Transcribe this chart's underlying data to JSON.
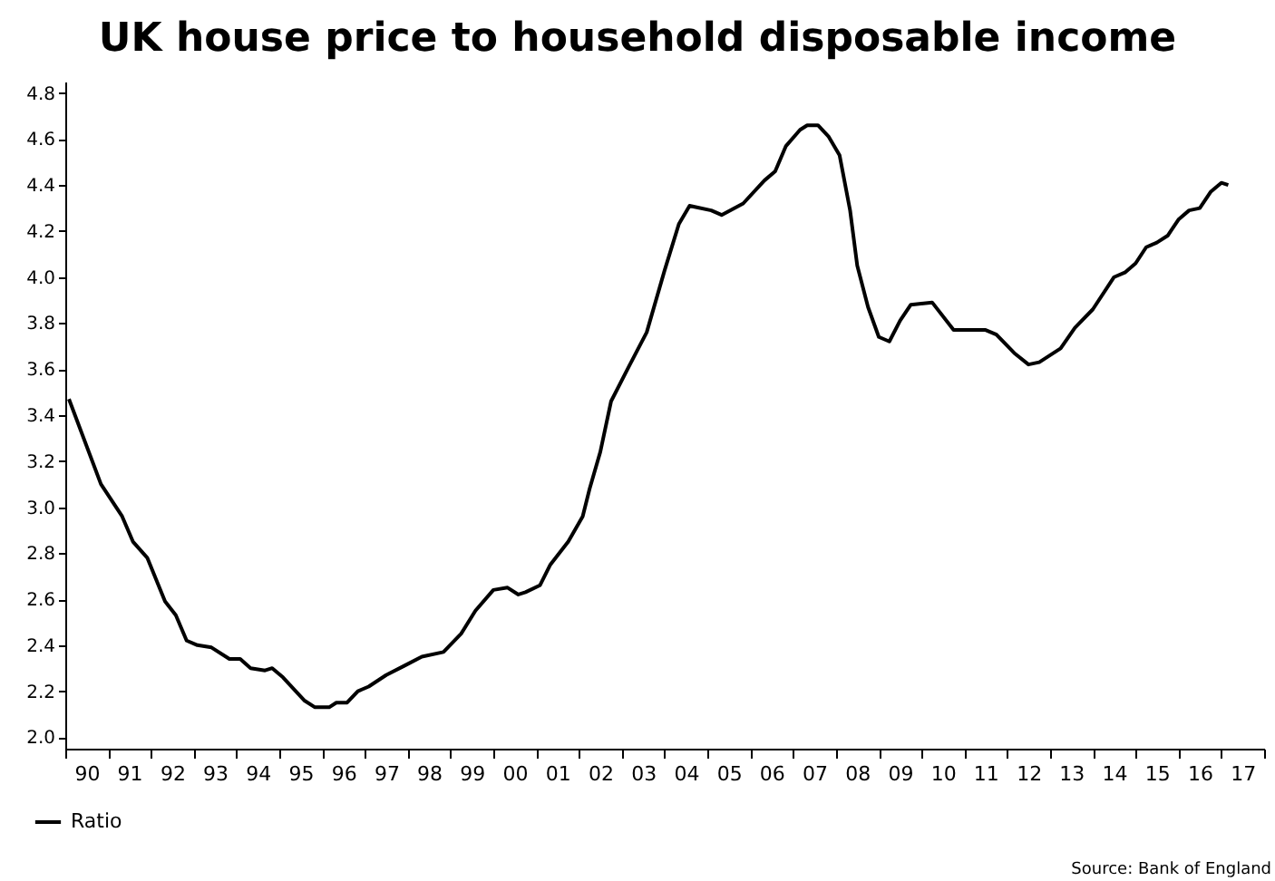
{
  "chart_data": {
    "type": "line",
    "title": "UK house price to household disposable income",
    "x": [
      "1990-02",
      "1990-11",
      "1991-05",
      "1991-08",
      "1991-12",
      "1992-05",
      "1992-08",
      "1992-11",
      "1993-02",
      "1993-06",
      "1993-11",
      "1994-02",
      "1994-05",
      "1994-09",
      "1994-11",
      "1995-02",
      "1995-08",
      "1995-11",
      "1996-03",
      "1996-05",
      "1996-08",
      "1996-11",
      "1997-02",
      "1997-07",
      "1997-12",
      "1998-05",
      "1998-11",
      "1999-04",
      "1999-08",
      "2000-01",
      "2000-05",
      "2000-08",
      "2000-10",
      "2001-02",
      "2001-05",
      "2001-10",
      "2002-02",
      "2002-04",
      "2002-07",
      "2002-10",
      "2003-03",
      "2003-08",
      "2004-01",
      "2004-05",
      "2004-08",
      "2005-02",
      "2005-05",
      "2005-11",
      "2006-05",
      "2006-08",
      "2006-11",
      "2007-03",
      "2007-05",
      "2007-08",
      "2007-11",
      "2008-02",
      "2008-05",
      "2008-07",
      "2008-10",
      "2009-01",
      "2009-04",
      "2009-07",
      "2009-10",
      "2010-04",
      "2010-10",
      "2011-07",
      "2011-10",
      "2012-03",
      "2012-07",
      "2012-10",
      "2013-04",
      "2013-08",
      "2014-01",
      "2014-07",
      "2014-10",
      "2015-01",
      "2015-04",
      "2015-07",
      "2015-10",
      "2016-01",
      "2016-04",
      "2016-07",
      "2016-10",
      "2017-01",
      "2017-03"
    ],
    "series": [
      {
        "name": "Ratio",
        "color": "#000000",
        "values": [
          3.47,
          3.1,
          2.96,
          2.85,
          2.78,
          2.59,
          2.53,
          2.42,
          2.4,
          2.39,
          2.34,
          2.34,
          2.3,
          2.29,
          2.3,
          2.26,
          2.16,
          2.13,
          2.13,
          2.15,
          2.15,
          2.2,
          2.22,
          2.27,
          2.31,
          2.35,
          2.37,
          2.45,
          2.55,
          2.64,
          2.65,
          2.62,
          2.63,
          2.66,
          2.75,
          2.85,
          2.96,
          3.08,
          3.24,
          3.46,
          3.61,
          3.76,
          4.03,
          4.23,
          4.31,
          4.29,
          4.27,
          4.32,
          4.42,
          4.46,
          4.57,
          4.64,
          4.66,
          4.66,
          4.61,
          4.53,
          4.29,
          4.05,
          3.87,
          3.74,
          3.72,
          3.81,
          3.88,
          3.89,
          3.77,
          3.77,
          3.75,
          3.67,
          3.62,
          3.63,
          3.69,
          3.78,
          3.86,
          4.0,
          4.02,
          4.06,
          4.13,
          4.15,
          4.18,
          4.25,
          4.29,
          4.3,
          4.37,
          4.41,
          4.4
        ]
      }
    ],
    "xlim": [
      "1990",
      "2018"
    ],
    "xticks": [
      {
        "value": "1990",
        "label": null
      },
      {
        "value": "1990-07",
        "label": "90"
      },
      {
        "value": "1991",
        "label": null
      },
      {
        "value": "1991-07",
        "label": "91"
      },
      {
        "value": "1992",
        "label": null
      },
      {
        "value": "1992-07",
        "label": "92"
      },
      {
        "value": "1993",
        "label": null
      },
      {
        "value": "1993-07",
        "label": "93"
      },
      {
        "value": "1994",
        "label": null
      },
      {
        "value": "1994-07",
        "label": "94"
      },
      {
        "value": "1995",
        "label": null
      },
      {
        "value": "1995-07",
        "label": "95"
      },
      {
        "value": "1996",
        "label": null
      },
      {
        "value": "1996-07",
        "label": "96"
      },
      {
        "value": "1997",
        "label": null
      },
      {
        "value": "1997-07",
        "label": "97"
      },
      {
        "value": "1998",
        "label": null
      },
      {
        "value": "1998-07",
        "label": "98"
      },
      {
        "value": "1999",
        "label": null
      },
      {
        "value": "1999-07",
        "label": "99"
      },
      {
        "value": "2000",
        "label": null
      },
      {
        "value": "2000-07",
        "label": "00"
      },
      {
        "value": "2001",
        "label": null
      },
      {
        "value": "2001-07",
        "label": "01"
      },
      {
        "value": "2002",
        "label": null
      },
      {
        "value": "2002-07",
        "label": "02"
      },
      {
        "value": "2003",
        "label": null
      },
      {
        "value": "2003-07",
        "label": "03"
      },
      {
        "value": "2004",
        "label": null
      },
      {
        "value": "2004-07",
        "label": "04"
      },
      {
        "value": "2005",
        "label": null
      },
      {
        "value": "2005-07",
        "label": "05"
      },
      {
        "value": "2006",
        "label": null
      },
      {
        "value": "2006-07",
        "label": "06"
      },
      {
        "value": "2007",
        "label": null
      },
      {
        "value": "2007-07",
        "label": "07"
      },
      {
        "value": "2008",
        "label": null
      },
      {
        "value": "2008-07",
        "label": "08"
      },
      {
        "value": "2009",
        "label": null
      },
      {
        "value": "2009-07",
        "label": "09"
      },
      {
        "value": "2010",
        "label": null
      },
      {
        "value": "2010-07",
        "label": "10"
      },
      {
        "value": "2011",
        "label": null
      },
      {
        "value": "2011-07",
        "label": "11"
      },
      {
        "value": "2012",
        "label": null
      },
      {
        "value": "2012-07",
        "label": "12"
      },
      {
        "value": "2013",
        "label": null
      },
      {
        "value": "2013-07",
        "label": "13"
      },
      {
        "value": "2014",
        "label": null
      },
      {
        "value": "2014-07",
        "label": "14"
      },
      {
        "value": "2015",
        "label": null
      },
      {
        "value": "2015-07",
        "label": "15"
      },
      {
        "value": "2016",
        "label": null
      },
      {
        "value": "2016-07",
        "label": "16"
      },
      {
        "value": "2017",
        "label": null
      },
      {
        "value": "2017-07",
        "label": "17"
      },
      {
        "value": "2018",
        "label": null
      }
    ],
    "ylim": [
      1.95,
      4.85
    ],
    "yticks": [
      {
        "value": 2,
        "label": "2.0"
      },
      {
        "value": 2.2,
        "label": "2.2"
      },
      {
        "value": 2.4,
        "label": "2.4"
      },
      {
        "value": 2.6,
        "label": "2.6"
      },
      {
        "value": 2.8,
        "label": "2.8"
      },
      {
        "value": 3,
        "label": "3.0"
      },
      {
        "value": 3.2,
        "label": "3.2"
      },
      {
        "value": 3.4,
        "label": "3.4"
      },
      {
        "value": 3.6,
        "label": "3.6"
      },
      {
        "value": 3.8,
        "label": "3.8"
      },
      {
        "value": 4,
        "label": "4.0"
      },
      {
        "value": 4.2,
        "label": "4.2"
      },
      {
        "value": 4.4,
        "label": "4.4"
      },
      {
        "value": 4.6,
        "label": "4.6"
      },
      {
        "value": 4.8,
        "label": "4.8"
      }
    ],
    "grid": false,
    "legend": "bottom left",
    "marker": "none",
    "line_style": "solid",
    "annotations": [
      "Source: Bank of England"
    ]
  }
}
